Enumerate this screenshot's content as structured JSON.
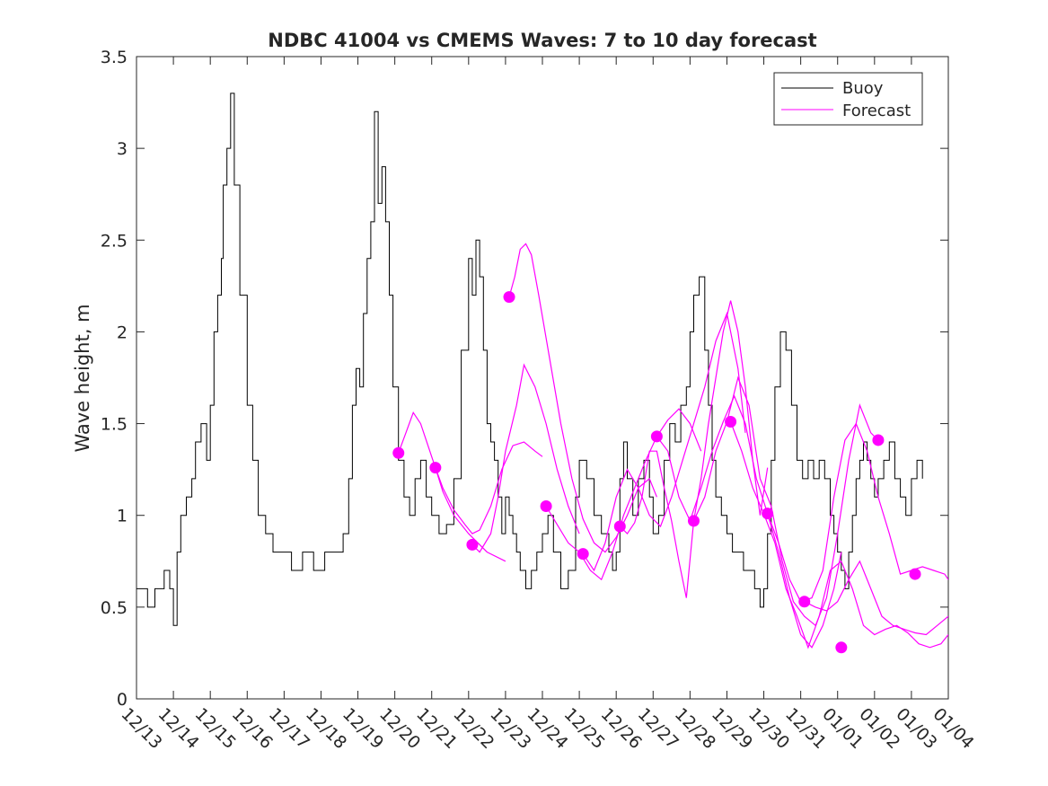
{
  "chart_data": {
    "type": "line",
    "title": "NDBC 41004 vs CMEMS Waves: 7 to 10 day forecast",
    "xlabel": "",
    "ylabel": "Wave height, m",
    "ylim": [
      0,
      3.5
    ],
    "xlim": [
      0,
      22
    ],
    "yticks": [
      0,
      0.5,
      1,
      1.5,
      2,
      2.5,
      3,
      3.5
    ],
    "ytick_labels": [
      "0",
      "0.5",
      "1",
      "1.5",
      "2",
      "2.5",
      "3",
      "3.5"
    ],
    "xticks": [
      0,
      1,
      2,
      3,
      4,
      5,
      6,
      7,
      8,
      9,
      10,
      11,
      12,
      13,
      14,
      15,
      16,
      17,
      18,
      19,
      20,
      21,
      22
    ],
    "xtick_labels": [
      "12/13",
      "12/14",
      "12/15",
      "12/16",
      "12/17",
      "12/18",
      "12/19",
      "12/20",
      "12/21",
      "12/22",
      "12/23",
      "12/24",
      "12/25",
      "12/26",
      "12/27",
      "12/28",
      "12/29",
      "12/30",
      "12/31",
      "01/01",
      "01/02",
      "01/03",
      "01/04"
    ],
    "legend": {
      "position": "top-right",
      "entries": [
        "Buoy",
        "Forecast"
      ]
    },
    "colors": {
      "buoy": "#000000",
      "forecast": "#ff00ff"
    },
    "series": [
      {
        "name": "Buoy",
        "x": [
          0,
          0.3,
          0.5,
          0.6,
          0.75,
          0.9,
          1.0,
          1.1,
          1.2,
          1.35,
          1.5,
          1.6,
          1.75,
          1.9,
          2.0,
          2.1,
          2.2,
          2.3,
          2.35,
          2.45,
          2.55,
          2.65,
          2.8,
          3.0,
          3.15,
          3.3,
          3.5,
          3.7,
          3.9,
          4.2,
          4.5,
          4.8,
          5.1,
          5.4,
          5.6,
          5.75,
          5.85,
          5.95,
          6.05,
          6.15,
          6.25,
          6.35,
          6.45,
          6.55,
          6.65,
          6.75,
          6.85,
          6.95,
          7.1,
          7.25,
          7.4,
          7.55,
          7.7,
          7.85,
          8.0,
          8.2,
          8.4,
          8.6,
          8.8,
          9.0,
          9.1,
          9.2,
          9.3,
          9.4,
          9.5,
          9.6,
          9.7,
          9.8,
          9.9,
          10.0,
          10.1,
          10.2,
          10.3,
          10.4,
          10.55,
          10.7,
          10.85,
          11.0,
          11.15,
          11.3,
          11.5,
          11.7,
          11.9,
          12.0,
          12.2,
          12.4,
          12.6,
          12.8,
          12.9,
          13.0,
          13.1,
          13.2,
          13.3,
          13.45,
          13.6,
          13.75,
          13.9,
          14.0,
          14.15,
          14.3,
          14.45,
          14.6,
          14.75,
          14.9,
          15.0,
          15.1,
          15.25,
          15.4,
          15.5,
          15.6,
          15.7,
          15.85,
          16.0,
          16.15,
          16.3,
          16.45,
          16.6,
          16.75,
          16.9,
          17.0,
          17.1,
          17.2,
          17.3,
          17.45,
          17.6,
          17.75,
          17.9,
          18.05,
          18.2,
          18.35,
          18.5,
          18.65,
          18.8,
          18.9,
          19.0,
          19.1,
          19.2,
          19.3,
          19.4,
          19.5,
          19.6,
          19.7,
          19.8,
          19.9,
          20.0,
          20.1,
          20.25,
          20.4,
          20.55,
          20.7,
          20.85,
          21.0,
          21.15,
          21.3
        ],
        "y": [
          0.6,
          0.5,
          0.6,
          0.6,
          0.7,
          0.6,
          0.4,
          0.8,
          1.0,
          1.1,
          1.2,
          1.4,
          1.5,
          1.3,
          1.6,
          2.0,
          2.2,
          2.4,
          2.8,
          3.0,
          3.3,
          2.8,
          2.2,
          1.6,
          1.3,
          1.0,
          0.9,
          0.8,
          0.8,
          0.7,
          0.8,
          0.7,
          0.8,
          0.8,
          0.9,
          1.2,
          1.6,
          1.8,
          1.7,
          2.1,
          2.4,
          2.6,
          3.2,
          2.7,
          2.9,
          2.6,
          2.2,
          1.7,
          1.3,
          1.1,
          1.0,
          1.2,
          1.3,
          1.1,
          1.0,
          0.9,
          0.95,
          1.2,
          1.9,
          2.4,
          2.2,
          2.5,
          2.3,
          1.9,
          1.5,
          1.4,
          1.3,
          1.1,
          0.9,
          1.1,
          1.0,
          0.9,
          0.8,
          0.7,
          0.6,
          0.7,
          0.8,
          0.9,
          1.0,
          0.8,
          0.6,
          0.7,
          1.1,
          1.3,
          1.2,
          1.0,
          0.9,
          0.8,
          0.7,
          0.8,
          1.2,
          1.4,
          1.2,
          1.0,
          1.2,
          1.3,
          1.1,
          0.9,
          1.0,
          1.3,
          1.5,
          1.4,
          1.6,
          1.7,
          2.0,
          2.2,
          2.3,
          1.9,
          1.6,
          1.3,
          1.1,
          1.0,
          0.9,
          0.8,
          0.8,
          0.7,
          0.7,
          0.6,
          0.5,
          0.6,
          0.9,
          1.3,
          1.7,
          2.0,
          1.9,
          1.6,
          1.3,
          1.2,
          1.3,
          1.2,
          1.3,
          1.2,
          1.0,
          0.9,
          0.8,
          0.7,
          0.6,
          0.8,
          1.0,
          1.2,
          1.3,
          1.4,
          1.3,
          1.2,
          1.1,
          1.2,
          1.3,
          1.4,
          1.2,
          1.1,
          1.0,
          1.2,
          1.3,
          1.2
        ]
      },
      {
        "name": "Forecast",
        "segments": [
          {
            "x": [
              7.1,
              7.3,
              7.5,
              7.7,
              7.9,
              8.1,
              8.3,
              8.6,
              9.0,
              9.5,
              10.0
            ],
            "y": [
              1.34,
              1.45,
              1.56,
              1.5,
              1.38,
              1.26,
              1.13,
              1.0,
              0.9,
              0.8,
              0.75
            ]
          },
          {
            "x": [
              8.1,
              8.3,
              8.6,
              8.9,
              9.1,
              9.3,
              9.6,
              9.9,
              10.2,
              10.5,
              10.8,
              11.0
            ],
            "y": [
              1.26,
              1.15,
              1.03,
              0.95,
              0.9,
              0.92,
              1.05,
              1.25,
              1.38,
              1.4,
              1.35,
              1.32
            ]
          },
          {
            "x": [
              9.1,
              9.3,
              9.6,
              9.8,
              10.0,
              10.3,
              10.5,
              10.8,
              11.1,
              11.4,
              11.7,
              12.0
            ],
            "y": [
              0.84,
              0.8,
              0.9,
              1.1,
              1.35,
              1.6,
              1.82,
              1.7,
              1.5,
              1.25,
              1.05,
              0.9
            ]
          },
          {
            "x": [
              10.1,
              10.25,
              10.4,
              10.55,
              10.7,
              10.9,
              11.2,
              11.5,
              11.8,
              12.1,
              12.4,
              12.7,
              13.0,
              13.3,
              13.6,
              13.9,
              14.1
            ],
            "y": [
              2.19,
              2.3,
              2.45,
              2.48,
              2.42,
              2.2,
              1.85,
              1.5,
              1.2,
              0.98,
              0.85,
              0.8,
              0.88,
              1.0,
              1.15,
              1.2,
              1.1
            ]
          },
          {
            "x": [
              11.1,
              11.4,
              11.7,
              12.0,
              12.3,
              12.6,
              12.9,
              13.2,
              13.5,
              13.8,
              14.1,
              14.4,
              14.7,
              15.0,
              15.3
            ],
            "y": [
              1.05,
              0.95,
              0.85,
              0.8,
              0.7,
              0.65,
              0.8,
              1.0,
              1.15,
              1.3,
              1.43,
              1.52,
              1.58,
              1.5,
              1.35
            ]
          },
          {
            "x": [
              12.1,
              12.4,
              12.7,
              13.0,
              13.3,
              13.6,
              13.9,
              14.2,
              14.5,
              14.8,
              15.1,
              15.4,
              15.7,
              16.0,
              16.3,
              16.5
            ],
            "y": [
              0.79,
              0.7,
              0.85,
              1.1,
              1.25,
              1.15,
              1.0,
              0.94,
              1.1,
              1.3,
              1.5,
              1.7,
              1.95,
              2.1,
              1.8,
              1.45
            ]
          },
          {
            "x": [
              13.1,
              13.3,
              13.5,
              13.7,
              13.9,
              14.1,
              14.3,
              14.5,
              14.7,
              14.9,
              15.1,
              15.3,
              15.5,
              15.7,
              15.9,
              16.1,
              16.3,
              16.5,
              16.7,
              16.9,
              17.1
            ],
            "y": [
              0.94,
              0.9,
              0.96,
              1.1,
              1.35,
              1.35,
              1.15,
              0.97,
              0.75,
              0.55,
              0.97,
              1.2,
              1.5,
              1.75,
              2.0,
              2.17,
              2.0,
              1.7,
              1.3,
              1.0,
              1.26
            ]
          },
          {
            "x": [
              14.1,
              14.4,
              14.7,
              15.0,
              15.3,
              15.6,
              15.9,
              16.2,
              16.5,
              16.8,
              17.1,
              17.4,
              17.7,
              18.0,
              18.3,
              18.6,
              18.9,
              19.1
            ],
            "y": [
              1.43,
              1.35,
              1.1,
              0.97,
              1.15,
              1.35,
              1.51,
              1.65,
              1.5,
              1.2,
              1.01,
              0.8,
              0.55,
              0.35,
              0.28,
              0.4,
              0.6,
              0.8
            ]
          },
          {
            "x": [
              15.1,
              15.4,
              15.7,
              16.0,
              16.3,
              16.6,
              16.9,
              17.2,
              17.5,
              17.8,
              18.1,
              18.4,
              18.7,
              19.0,
              19.3,
              19.6,
              19.9,
              20.1
            ],
            "y": [
              0.97,
              1.1,
              1.35,
              1.51,
              1.75,
              1.6,
              1.2,
              1.05,
              0.75,
              0.53,
              0.45,
              0.4,
              0.55,
              0.9,
              1.3,
              1.6,
              1.45,
              1.41
            ]
          },
          {
            "x": [
              16.1,
              16.4,
              16.7,
              17.0,
              17.3,
              17.6,
              17.9,
              18.2,
              18.5,
              18.8,
              19.1,
              19.4,
              19.7,
              20.0,
              20.3,
              20.6,
              20.9,
              21.2,
              21.5,
              21.8,
              22.0
            ],
            "y": [
              1.51,
              1.35,
              1.15,
              1.01,
              0.85,
              0.6,
              0.45,
              0.28,
              0.45,
              0.7,
              0.75,
              0.6,
              0.4,
              0.35,
              0.38,
              0.4,
              0.36,
              0.3,
              0.28,
              0.3,
              0.35
            ]
          },
          {
            "x": [
              17.1,
              17.4,
              17.7,
              18.0,
              18.3,
              18.6,
              18.9,
              19.2,
              19.5,
              19.8,
              20.1,
              20.4,
              20.7,
              21.0,
              21.3,
              21.6,
              21.9,
              22.0
            ],
            "y": [
              1.01,
              0.85,
              0.65,
              0.53,
              0.55,
              0.7,
              1.1,
              1.41,
              1.5,
              1.35,
              1.1,
              0.9,
              0.68,
              0.7,
              0.72,
              0.7,
              0.68,
              0.65
            ]
          },
          {
            "x": [
              18.1,
              18.4,
              18.7,
              19.0,
              19.3,
              19.6,
              19.9,
              20.2,
              20.5,
              20.8,
              21.1,
              21.4,
              21.7,
              22.0
            ],
            "y": [
              0.53,
              0.5,
              0.48,
              0.53,
              0.65,
              0.75,
              0.6,
              0.45,
              0.4,
              0.38,
              0.36,
              0.35,
              0.4,
              0.45
            ]
          }
        ],
        "markers": {
          "x": [
            7.1,
            8.1,
            9.1,
            10.1,
            11.1,
            12.1,
            13.1,
            14.1,
            15.1,
            16.1,
            17.1,
            18.1,
            19.1,
            20.1,
            21.1
          ],
          "y": [
            1.34,
            1.26,
            0.84,
            2.19,
            1.05,
            0.79,
            0.94,
            1.43,
            0.97,
            1.51,
            1.01,
            0.53,
            0.28,
            1.41,
            0.68
          ]
        }
      }
    ]
  }
}
